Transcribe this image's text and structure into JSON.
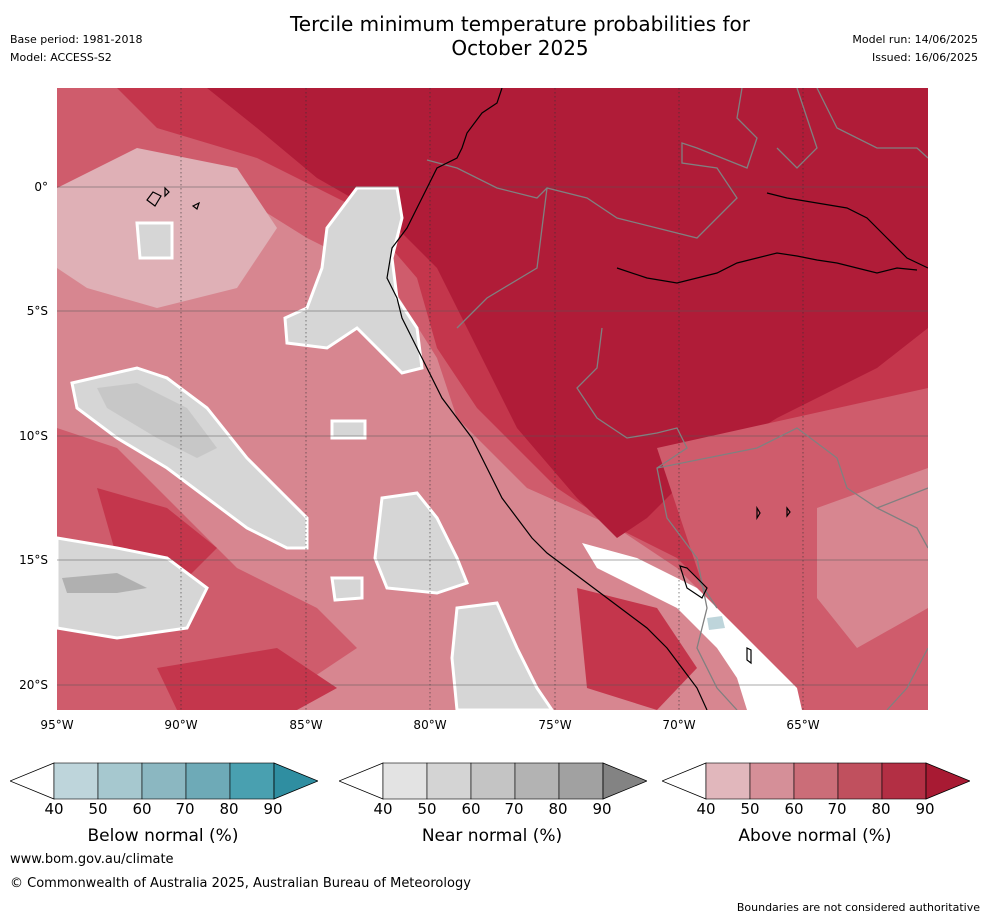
{
  "header": {
    "title_line1": "Tercile minimum temperature probabilities for",
    "title_line2": "October 2025",
    "base_period": "Base period: 1981-2018",
    "model": "Model: ACCESS-S2",
    "model_run": "Model run: 14/06/2025",
    "issued": "Issued: 16/06/2025"
  },
  "map": {
    "lat_labels": [
      "0°",
      "5°S",
      "10°S",
      "15°S",
      "20°S"
    ],
    "lon_labels": [
      "95°W",
      "90°W",
      "85°W",
      "80°W",
      "75°W",
      "70°W",
      "65°W"
    ],
    "colors": {
      "above_90": "#b01c38",
      "above_80": "#c4364c",
      "above_70": "#cf5c6c",
      "above_60": "#d78690",
      "above_50": "#dfb0b6",
      "near_50": "#d6d6d6",
      "near_60": "#c7c7c7",
      "near_70": "#b0b0b0",
      "below_40": "#bed5db",
      "land_border": "#000000",
      "country_border": "#808080"
    }
  },
  "colorbars": [
    {
      "label": "Below normal (%)",
      "ticks": [
        "40",
        "50",
        "60",
        "70",
        "80",
        "90"
      ],
      "colors": [
        "#bed5db",
        "#a6c8cf",
        "#8bb7c1",
        "#6eaab7",
        "#49a0b0",
        "#2f8ea1"
      ]
    },
    {
      "label": "Near normal (%)",
      "ticks": [
        "40",
        "50",
        "60",
        "70",
        "80",
        "90"
      ],
      "colors": [
        "#e3e3e3",
        "#d4d4d4",
        "#c4c4c4",
        "#b3b3b3",
        "#a1a1a1",
        "#838383"
      ]
    },
    {
      "label": "Above normal (%)",
      "ticks": [
        "40",
        "50",
        "60",
        "70",
        "80",
        "90"
      ],
      "colors": [
        "#e1b7bc",
        "#d58f98",
        "#cb6d78",
        "#c0505e",
        "#b32f44",
        "#a81a33"
      ]
    }
  ],
  "footer": {
    "website": "www.bom.gov.au/climate",
    "copyright": "© Commonwealth of Australia 2025, Australian Bureau of Meteorology",
    "disclaimer": "Boundaries are not considered authoritative"
  }
}
